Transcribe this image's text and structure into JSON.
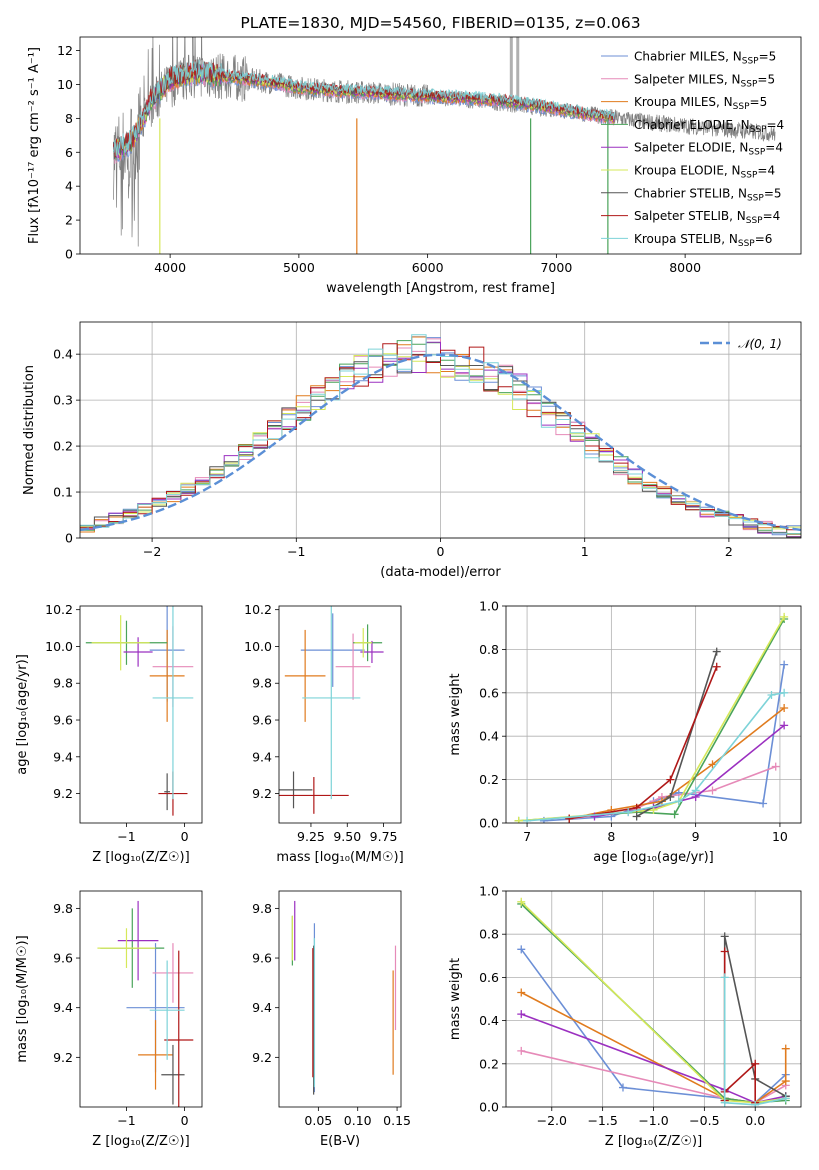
{
  "figure": {
    "title": "PLATE=1830, MJD=54560, FIBERID=0135, z=0.063"
  },
  "colors": [
    "#6c8fd6",
    "#e68ab8",
    "#e07b1e",
    "#4aa35a",
    "#9b30c0",
    "#d6e85a",
    "#555555",
    "#b01818",
    "#7dd3d8"
  ],
  "chart_data": [
    {
      "type": "line",
      "id": "spectrum",
      "title": "PLATE=1830, MJD=54560, FIBERID=0135, z=0.063",
      "xlabel": "wavelength [Angstrom, rest frame]",
      "ylabel": "Flux [fλ10⁻¹⁷ erg cm⁻² s⁻¹ A⁻¹]",
      "xlim": [
        3300,
        8900
      ],
      "ylim": [
        0,
        12.8
      ],
      "xticks": [
        4000,
        5000,
        6000,
        7000,
        8000
      ],
      "yticks": [
        0,
        2,
        4,
        6,
        8,
        10,
        12
      ],
      "grid": false,
      "legend_position": "upper right",
      "data_envelope": {
        "x": [
          3560,
          3700,
          3850,
          4000,
          4200,
          4500,
          4800,
          5000,
          5300,
          5600,
          6000,
          6300,
          6600,
          6900,
          7200,
          7500,
          7800,
          8100,
          8400,
          8700
        ],
        "y": [
          5.8,
          6.4,
          8.8,
          10.0,
          10.6,
          10.4,
          10.1,
          9.8,
          9.6,
          9.5,
          9.3,
          9.1,
          8.9,
          8.6,
          8.3,
          8.0,
          7.7,
          7.5,
          7.3,
          7.1
        ]
      },
      "model_continuum": {
        "x": [
          3560,
          3700,
          3850,
          4000,
          4200,
          4500,
          4800,
          5000,
          5300,
          5600,
          6000,
          6300,
          6600,
          6900,
          7200,
          7450
        ],
        "y": [
          6.0,
          6.6,
          9.0,
          10.3,
          10.7,
          10.4,
          10.1,
          9.8,
          9.6,
          9.5,
          9.3,
          9.2,
          9.0,
          8.7,
          8.3,
          8.0
        ]
      },
      "series": [
        {
          "name": "Chabrier MILES, N",
          "sub": "SSP",
          "suffix": "=5"
        },
        {
          "name": "Salpeter MILES, N",
          "sub": "SSP",
          "suffix": "=5"
        },
        {
          "name": "Kroupa MILES, N",
          "sub": "SSP",
          "suffix": "=5"
        },
        {
          "name": "Chabrier ELODIE, N",
          "sub": "SSP",
          "suffix": "=4"
        },
        {
          "name": "Salpeter ELODIE, N",
          "sub": "SSP",
          "suffix": "=4"
        },
        {
          "name": "Kroupa ELODIE, N",
          "sub": "SSP",
          "suffix": "=4"
        },
        {
          "name": "Chabrier STELIB, N",
          "sub": "SSP",
          "suffix": "=5"
        },
        {
          "name": "Salpeter STELIB, N",
          "sub": "SSP",
          "suffix": "=4"
        },
        {
          "name": "Kroupa STELIB, N",
          "sub": "SSP",
          "suffix": "=6"
        }
      ]
    },
    {
      "type": "histogram",
      "id": "residuals",
      "xlabel": "(data-model)/error",
      "ylabel": "Normed distribution",
      "xlim": [
        -2.5,
        2.5
      ],
      "ylim": [
        0,
        0.47
      ],
      "xticks": [
        -2,
        -1,
        0,
        1,
        2
      ],
      "yticks": [
        0.0,
        0.1,
        0.2,
        0.3,
        0.4
      ],
      "grid": true,
      "legend_position": "upper right",
      "legend_label": "𝒩(0, 1)",
      "bin_width": 0.1,
      "bins_start": -2.5,
      "gaussian": {
        "mu": 0,
        "sigma": 1
      }
    },
    {
      "type": "scatter",
      "id": "Z-vs-age",
      "xlabel": "Z [log₁₀(Z/Z☉)]",
      "ylabel": "age  [log₁₀(age/yr)]",
      "xlim": [
        -1.8,
        0.3
      ],
      "ylim": [
        9.04,
        10.22
      ],
      "xticks": [
        -1,
        0
      ],
      "yticks": [
        9.2,
        9.4,
        9.6,
        9.8,
        10.0,
        10.2
      ],
      "grid": false,
      "points": [
        {
          "x": -0.3,
          "xerr": 0.3,
          "y": 9.98,
          "yerr": 0.28
        },
        {
          "x": -0.2,
          "xerr": 0.35,
          "y": 9.89,
          "yerr": 0.22
        },
        {
          "x": -0.3,
          "xerr": 0.3,
          "y": 9.84,
          "yerr": 0.25
        },
        {
          "x": -1.0,
          "xerr": 0.7,
          "y": 10.02,
          "yerr": 0.12
        },
        {
          "x": -0.8,
          "xerr": 0.25,
          "y": 9.97,
          "yerr": 0.08
        },
        {
          "x": -1.1,
          "xerr": 0.5,
          "y": 10.02,
          "yerr": 0.15
        },
        {
          "x": -0.3,
          "xerr": 0.05,
          "y": 9.21,
          "yerr": 0.1
        },
        {
          "x": -0.2,
          "xerr": 0.25,
          "y": 9.2,
          "yerr": 0.12
        },
        {
          "x": -0.2,
          "xerr": 0.35,
          "y": 9.72,
          "yerr": 0.55
        }
      ]
    },
    {
      "type": "scatter",
      "id": "mass-vs-age",
      "xlabel": "mass [log₁₀(M/M☉)]",
      "ylabel": "",
      "xlim": [
        9.03,
        9.87
      ],
      "ylim": [
        9.04,
        10.22
      ],
      "xticks": [
        9.25,
        9.5,
        9.75
      ],
      "xtick_labels": [
        "9.25",
        "9.50",
        "9.75"
      ],
      "yticks": [
        9.2,
        9.4,
        9.6,
        9.8,
        10.0,
        10.2
      ],
      "grid": false,
      "points": [
        {
          "x": 9.4,
          "xerr": 0.22,
          "y": 9.98,
          "yerr": 0.2
        },
        {
          "x": 9.54,
          "xerr": 0.12,
          "y": 9.89,
          "yerr": 0.18
        },
        {
          "x": 9.21,
          "xerr": 0.14,
          "y": 9.84,
          "yerr": 0.25
        },
        {
          "x": 9.64,
          "xerr": 0.1,
          "y": 10.02,
          "yerr": 0.1
        },
        {
          "x": 9.67,
          "xerr": 0.08,
          "y": 9.97,
          "yerr": 0.06
        },
        {
          "x": 9.61,
          "xerr": 0.06,
          "y": 10.02,
          "yerr": 0.08
        },
        {
          "x": 9.13,
          "xerr": 0.13,
          "y": 9.22,
          "yerr": 0.1
        },
        {
          "x": 9.27,
          "xerr": 0.24,
          "y": 9.19,
          "yerr": 0.1
        },
        {
          "x": 9.39,
          "xerr": 0.2,
          "y": 9.72,
          "yerr": 0.55
        }
      ]
    },
    {
      "type": "line",
      "id": "age-vs-massweight",
      "xlabel": "age  [log₁₀(age/yr)]",
      "ylabel": "mass weight",
      "xlim": [
        6.75,
        10.25
      ],
      "ylim": [
        0,
        1
      ],
      "xticks": [
        7,
        8,
        9,
        10
      ],
      "yticks": [
        0.0,
        0.2,
        0.4,
        0.6,
        0.8,
        1.0
      ],
      "grid": true,
      "series": [
        {
          "x": [
            7.2,
            8.0,
            8.5,
            8.8,
            9.8,
            10.05
          ],
          "y": [
            0.01,
            0.03,
            0.1,
            0.14,
            0.09,
            0.73
          ]
        },
        {
          "x": [
            7.5,
            8.2,
            8.6,
            9.2,
            9.95
          ],
          "y": [
            0.02,
            0.05,
            0.12,
            0.15,
            0.26
          ]
        },
        {
          "x": [
            7.5,
            8.0,
            8.6,
            9.2,
            10.05
          ],
          "y": [
            0.02,
            0.06,
            0.1,
            0.27,
            0.53
          ]
        },
        {
          "x": [
            6.9,
            8.3,
            8.75,
            10.05
          ],
          "y": [
            0.01,
            0.05,
            0.04,
            0.94
          ]
        },
        {
          "x": [
            7.8,
            8.5,
            9.0,
            10.05
          ],
          "y": [
            0.03,
            0.07,
            0.12,
            0.45
          ]
        },
        {
          "x": [
            6.9,
            8.5,
            8.8,
            10.05
          ],
          "y": [
            0.01,
            0.06,
            0.1,
            0.95
          ]
        },
        {
          "x": [
            8.3,
            8.7,
            9.25
          ],
          "y": [
            0.03,
            0.12,
            0.79
          ]
        },
        {
          "x": [
            7.5,
            8.3,
            8.7,
            9.25
          ],
          "y": [
            0.02,
            0.07,
            0.2,
            0.72
          ]
        },
        {
          "x": [
            7.0,
            8.2,
            8.8,
            9.0,
            9.9,
            10.05
          ],
          "y": [
            0.01,
            0.05,
            0.1,
            0.15,
            0.59,
            0.6
          ]
        }
      ]
    },
    {
      "type": "scatter",
      "id": "Z-vs-mass",
      "xlabel": "Z [log₁₀(Z/Z☉)]",
      "ylabel": "mass [log₁₀(M/M☉)]",
      "xlim": [
        -1.8,
        0.3
      ],
      "ylim": [
        9.0,
        9.87
      ],
      "xticks": [
        -1,
        0
      ],
      "yticks": [
        9.2,
        9.4,
        9.6,
        9.8
      ],
      "grid": false,
      "points": [
        {
          "x": -0.5,
          "xerr": 0.5,
          "y": 9.4,
          "yerr": 0.26
        },
        {
          "x": -0.2,
          "xerr": 0.35,
          "y": 9.54,
          "yerr": 0.12
        },
        {
          "x": -0.5,
          "xerr": 0.3,
          "y": 9.21,
          "yerr": 0.14
        },
        {
          "x": -0.9,
          "xerr": 0.55,
          "y": 9.64,
          "yerr": 0.16
        },
        {
          "x": -0.8,
          "xerr": 0.35,
          "y": 9.67,
          "yerr": 0.16
        },
        {
          "x": -1.0,
          "xerr": 0.5,
          "y": 9.64,
          "yerr": 0.08
        },
        {
          "x": -0.2,
          "xerr": 0.2,
          "y": 9.13,
          "yerr": 0.12
        },
        {
          "x": -0.1,
          "xerr": 0.25,
          "y": 9.27,
          "yerr": 0.36
        },
        {
          "x": -0.3,
          "xerr": 0.3,
          "y": 9.39,
          "yerr": 0.2
        }
      ]
    },
    {
      "type": "scatter",
      "id": "EBV-vs-mass",
      "xlabel": "E(B-V)",
      "ylabel": "",
      "xlim": [
        0.0,
        0.155
      ],
      "ylim": [
        9.0,
        9.87
      ],
      "xticks": [
        0.05,
        0.1,
        0.15
      ],
      "xtick_labels": [
        "0.05",
        "0.10",
        "0.15"
      ],
      "yticks": [
        9.2,
        9.4,
        9.6,
        9.8
      ],
      "grid": false,
      "points": [
        {
          "x": 0.045,
          "xerr": 0,
          "y": 9.4,
          "yerr": 0.34
        },
        {
          "x": 0.148,
          "xerr": 0,
          "y": 9.48,
          "yerr": 0.17
        },
        {
          "x": 0.145,
          "xerr": 0,
          "y": 9.34,
          "yerr": 0.21
        },
        {
          "x": 0.017,
          "xerr": 0,
          "y": 9.67,
          "yerr": 0.1
        },
        {
          "x": 0.02,
          "xerr": 0,
          "y": 9.71,
          "yerr": 0.12
        },
        {
          "x": 0.017,
          "xerr": 0,
          "y": 9.68,
          "yerr": 0.09
        },
        {
          "x": 0.044,
          "xerr": 0,
          "y": 9.35,
          "yerr": 0.3
        },
        {
          "x": 0.043,
          "xerr": 0,
          "y": 9.38,
          "yerr": 0.26
        },
        {
          "x": 0.045,
          "xerr": 0,
          "y": 9.38,
          "yerr": 0.3
        }
      ]
    },
    {
      "type": "line",
      "id": "Z-vs-massweight",
      "xlabel": "Z [log₁₀(Z/Z☉)]",
      "ylabel": "mass weight",
      "xlim": [
        -2.45,
        0.45
      ],
      "ylim": [
        0,
        1
      ],
      "xticks": [
        -2.0,
        -1.5,
        -1.0,
        -0.5,
        0.0
      ],
      "xtick_labels": [
        "−2.0",
        "−1.5",
        "−1.0",
        "−0.5",
        "0.0"
      ],
      "yticks": [
        0.0,
        0.2,
        0.4,
        0.6,
        0.8,
        1.0
      ],
      "grid": true,
      "series": [
        {
          "x": [
            -2.3,
            -1.3,
            -0.3,
            0.0,
            0.3
          ],
          "y": [
            0.73,
            0.09,
            0.04,
            0.02,
            0.15
          ]
        },
        {
          "x": [
            -2.3,
            -0.3,
            0.0,
            0.3
          ],
          "y": [
            0.26,
            0.04,
            0.02,
            0.1
          ]
        },
        {
          "x": [
            -2.3,
            -0.3,
            0.0,
            0.3,
            0.3
          ],
          "y": [
            0.53,
            0.04,
            0.02,
            0.12,
            0.27
          ]
        },
        {
          "x": [
            -2.3,
            -0.3,
            0.0,
            0.3
          ],
          "y": [
            0.94,
            0.04,
            0.02,
            0.03
          ]
        },
        {
          "x": [
            -2.3,
            -0.3,
            0.0,
            0.3
          ],
          "y": [
            0.43,
            0.08,
            0.02,
            0.05
          ]
        },
        {
          "x": [
            -2.3,
            -0.3,
            0.0,
            0.3
          ],
          "y": [
            0.95,
            0.03,
            0.02,
            0.04
          ]
        },
        {
          "x": [
            -0.3,
            -0.3,
            0.0,
            0.3
          ],
          "y": [
            0.03,
            0.79,
            0.13,
            0.05
          ]
        },
        {
          "x": [
            -0.3,
            -0.3,
            -0.3,
            0.0,
            0.0
          ],
          "y": [
            0.03,
            0.72,
            0.07,
            0.2,
            0.02
          ]
        },
        {
          "x": [
            -0.3,
            -0.3,
            0.0,
            0.3
          ],
          "y": [
            0.6,
            0.02,
            0.01,
            0.04
          ]
        }
      ]
    }
  ]
}
